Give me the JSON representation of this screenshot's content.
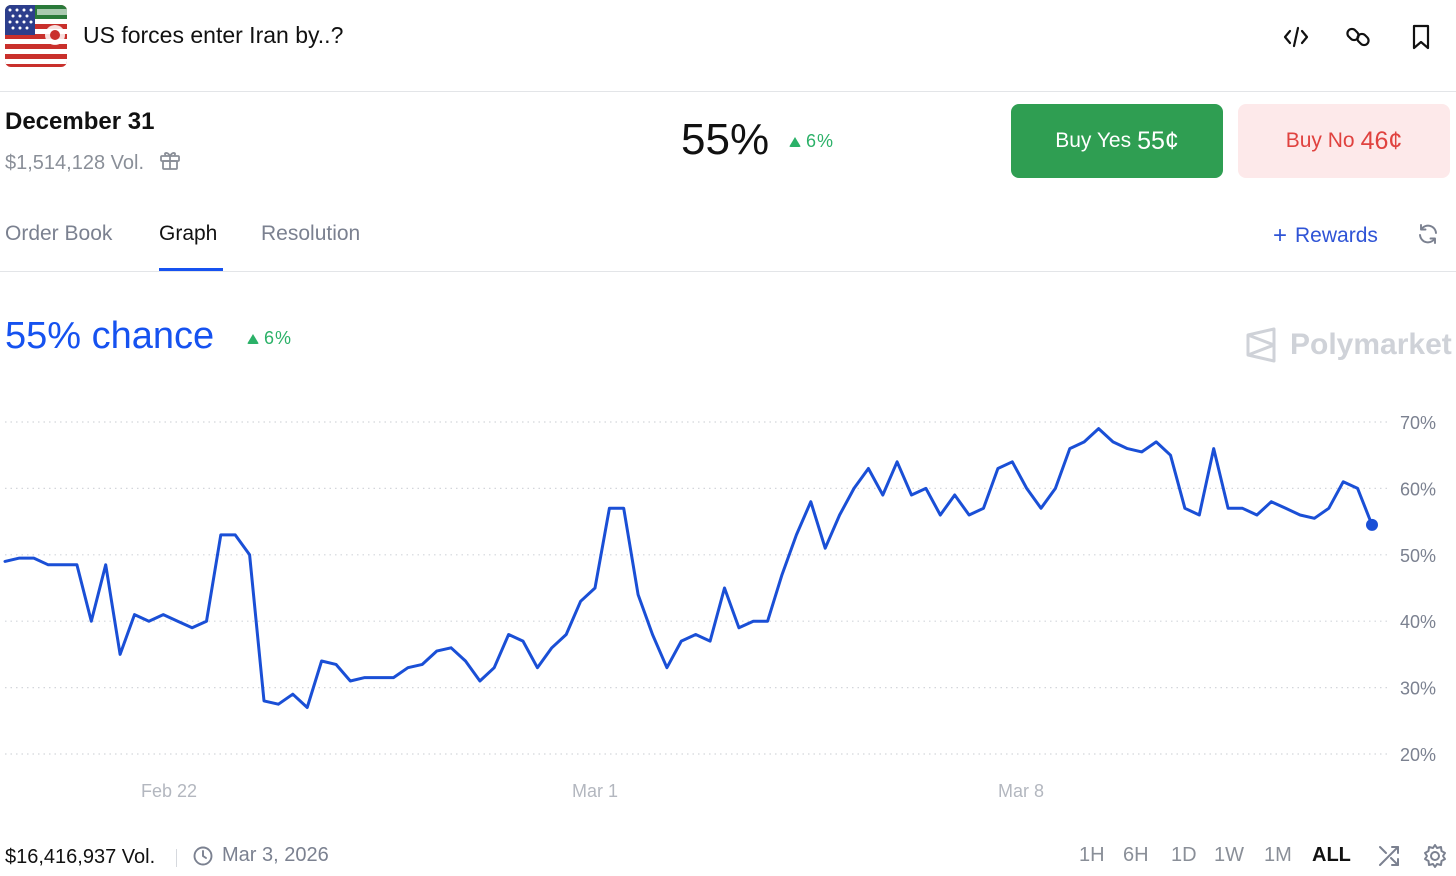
{
  "header": {
    "title": "US forces enter Iran by..?",
    "icons": [
      "embed-icon",
      "link-icon",
      "bookmark-icon"
    ]
  },
  "market": {
    "date": "December 31",
    "volume": "$1,514,128 Vol.",
    "probability": "55%",
    "change": "6%",
    "buy_yes_label": "Buy Yes",
    "buy_yes_price": "55¢",
    "buy_no_label": "Buy No",
    "buy_no_price": "46¢"
  },
  "tabs": [
    {
      "label": "Order Book",
      "active": false
    },
    {
      "label": "Graph",
      "active": true
    },
    {
      "label": "Resolution",
      "active": false
    }
  ],
  "rewards_label": "Rewards",
  "graph": {
    "chance_label": "55% chance",
    "change": "6%",
    "brand": "Polymarket"
  },
  "colors": {
    "accent": "#1652f0",
    "yes": "#2f9e52",
    "no_bg": "#fde9ea",
    "no_text": "#e0423f",
    "up": "#2bb168",
    "line": "#1a4fd6"
  },
  "chart_data": {
    "type": "line",
    "title": "",
    "xlabel": "",
    "ylabel": "",
    "x_start": "Feb 18",
    "x_end": "Mar 12",
    "x_ticks": [
      "Feb 22",
      "Mar 1",
      "Mar 8"
    ],
    "y_ticks": [
      "70%",
      "60%",
      "50%",
      "40%",
      "30%",
      "20%"
    ],
    "ylim": [
      17,
      72
    ],
    "grid": true,
    "series": [
      {
        "values": [
          49,
          49.5,
          49.5,
          48.5,
          48.5,
          48.5,
          40,
          48.5,
          35,
          41,
          40,
          41,
          40,
          39,
          40,
          53,
          53,
          50,
          28,
          27.5,
          29,
          27,
          34,
          33.5,
          31,
          31.5,
          31.5,
          31.5,
          33,
          33.5,
          35.5,
          36,
          34,
          31,
          33,
          38,
          37,
          33,
          36,
          38,
          43,
          45,
          57,
          57,
          44,
          38,
          33,
          37,
          38,
          37,
          45,
          39,
          40,
          40,
          47,
          53,
          58,
          51,
          56,
          60,
          63,
          59,
          64,
          59,
          60,
          56,
          59,
          56,
          57,
          63,
          64,
          60,
          57,
          60,
          66,
          67,
          69,
          67,
          66,
          65.5,
          67,
          65,
          57,
          56,
          66,
          57,
          57,
          56,
          58,
          57,
          56,
          55.5,
          57,
          61,
          60,
          54.5
        ],
        "last_value": 54.5
      }
    ]
  },
  "footer": {
    "volume": "$16,416,937 Vol.",
    "date": "Mar 3, 2026",
    "ranges": [
      "1H",
      "6H",
      "1D",
      "1W",
      "1M",
      "ALL"
    ],
    "active_range": "ALL"
  }
}
